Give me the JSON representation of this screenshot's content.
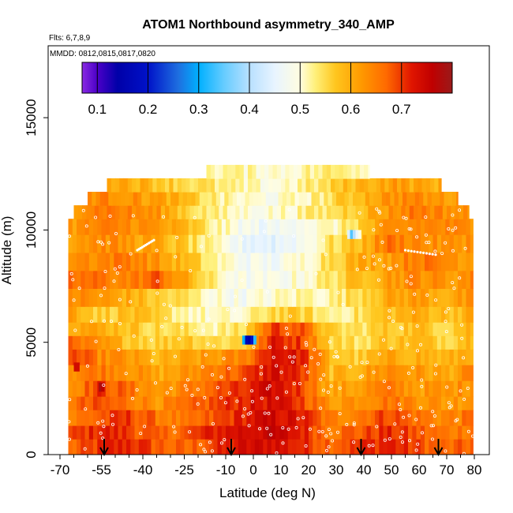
{
  "chart_data": {
    "type": "heatmap",
    "title": "ATOM1 Northbound asymmetry_340_AMP",
    "subtitle_flights": "Flts: 6,7,8,9",
    "subtitle_dates": "MMDD: 0812,0815,0817,0820",
    "xlabel": "Latitude (deg N)",
    "ylabel": "Altitude (m)",
    "xlim": [
      -70,
      80
    ],
    "ylim": [
      0,
      17500
    ],
    "x_ticks": [
      -70,
      -55,
      -40,
      -25,
      -10,
      0,
      10,
      20,
      30,
      40,
      50,
      60,
      70,
      80
    ],
    "x_tick_labels": [
      "-70",
      "-55",
      "-40",
      "-25",
      "-10",
      "0",
      "10",
      "20",
      "30",
      "40",
      "50",
      "60",
      "70",
      "80"
    ],
    "x_minor_ticks": [
      -65,
      -60,
      -50,
      -45,
      -35,
      -30,
      -20,
      -15,
      -5,
      5,
      15,
      25,
      35,
      45,
      55,
      65,
      75
    ],
    "y_ticks": [
      0,
      5000,
      10000,
      15000
    ],
    "y_tick_labels": [
      "0",
      "5000",
      "10000",
      "15000"
    ],
    "colorbar": {
      "range": [
        0.07,
        0.8
      ],
      "tick_values": [
        0.1,
        0.2,
        0.3,
        0.4,
        0.5,
        0.6,
        0.7
      ],
      "tick_labels": [
        "0.1",
        "0.2",
        "0.3",
        "0.4",
        "0.5",
        "0.6",
        "0.7"
      ],
      "stops": [
        {
          "v": 0.07,
          "color": "#8a2be2"
        },
        {
          "v": 0.1,
          "color": "#4b00c8"
        },
        {
          "v": 0.14,
          "color": "#0000a8"
        },
        {
          "v": 0.2,
          "color": "#0012c8"
        },
        {
          "v": 0.26,
          "color": "#1e6fe0"
        },
        {
          "v": 0.3,
          "color": "#00b0ff"
        },
        {
          "v": 0.35,
          "color": "#66ccff"
        },
        {
          "v": 0.4,
          "color": "#b8e0ff"
        },
        {
          "v": 0.45,
          "color": "#e8f4ff"
        },
        {
          "v": 0.5,
          "color": "#fffde0"
        },
        {
          "v": 0.53,
          "color": "#fff07a"
        },
        {
          "v": 0.57,
          "color": "#ffc61e"
        },
        {
          "v": 0.62,
          "color": "#ff9a00"
        },
        {
          "v": 0.67,
          "color": "#ff6a00"
        },
        {
          "v": 0.72,
          "color": "#e01500"
        },
        {
          "v": 0.76,
          "color": "#c00000"
        },
        {
          "v": 0.8,
          "color": "#9a1a1a"
        }
      ]
    },
    "profile_arrows_lat": [
      -54,
      -8,
      39,
      67
    ],
    "profile_bands": [
      {
        "y0": 0,
        "y1": 700,
        "x0": -67,
        "x1": 79.5,
        "values": [
          0.66,
          0.7,
          0.72,
          0.68,
          0.66,
          0.7,
          0.73,
          0.74,
          0.71,
          0.68,
          0.7,
          0.72,
          0.69,
          0.66,
          0.68
        ]
      },
      {
        "y0": 700,
        "y1": 1300,
        "x0": -67,
        "x1": 79.5,
        "values": [
          0.68,
          0.72,
          0.7,
          0.66,
          0.68,
          0.72,
          0.74,
          0.75,
          0.72,
          0.66,
          0.68,
          0.71,
          0.68,
          0.65,
          0.67
        ]
      },
      {
        "y0": 1300,
        "y1": 2000,
        "x0": -67,
        "x1": 79.5,
        "values": [
          0.64,
          0.68,
          0.7,
          0.66,
          0.64,
          0.68,
          0.72,
          0.74,
          0.72,
          0.64,
          0.66,
          0.7,
          0.66,
          0.64,
          0.66
        ]
      },
      {
        "y0": 2000,
        "y1": 2600,
        "x0": -67,
        "x1": 79.5,
        "values": [
          0.66,
          0.68,
          0.66,
          0.63,
          0.65,
          0.69,
          0.72,
          0.73,
          0.7,
          0.62,
          0.64,
          0.66,
          0.64,
          0.62,
          0.64
        ]
      },
      {
        "y0": 2600,
        "y1": 3300,
        "x0": -67,
        "x1": 79.5,
        "values": [
          0.63,
          0.7,
          0.66,
          0.62,
          0.64,
          0.68,
          0.7,
          0.74,
          0.7,
          0.6,
          0.62,
          0.65,
          0.62,
          0.62,
          0.64
        ]
      },
      {
        "y0": 3300,
        "y1": 4000,
        "x0": -67,
        "x1": 79.5,
        "values": [
          0.64,
          0.66,
          0.64,
          0.6,
          0.62,
          0.66,
          0.68,
          0.74,
          0.7,
          0.58,
          0.6,
          0.64,
          0.62,
          0.6,
          0.64
        ]
      },
      {
        "y0": 4000,
        "y1": 4700,
        "x0": -67,
        "x1": 79.5,
        "values": [
          0.7,
          0.64,
          0.62,
          0.58,
          0.6,
          0.62,
          0.64,
          0.74,
          0.72,
          0.58,
          0.56,
          0.6,
          0.6,
          0.58,
          0.62
        ]
      },
      {
        "y0": 4700,
        "y1": 5300,
        "x0": -67,
        "x1": 79.5,
        "values": [
          0.66,
          0.62,
          0.58,
          0.56,
          0.58,
          0.55,
          0.56,
          0.72,
          0.7,
          0.56,
          0.54,
          0.58,
          0.58,
          0.56,
          0.6
        ]
      },
      {
        "y0": 5300,
        "y1": 5900,
        "x0": -67,
        "x1": 79.5,
        "values": [
          0.62,
          0.6,
          0.58,
          0.55,
          0.54,
          0.52,
          0.54,
          0.7,
          0.68,
          0.55,
          0.54,
          0.57,
          0.58,
          0.56,
          0.6
        ]
      },
      {
        "y0": 5900,
        "y1": 6600,
        "x0": -67,
        "x1": 79.5,
        "values": [
          0.62,
          0.56,
          0.58,
          0.55,
          0.52,
          0.5,
          0.5,
          0.56,
          0.56,
          0.52,
          0.54,
          0.58,
          0.6,
          0.58,
          0.6
        ]
      },
      {
        "y0": 6600,
        "y1": 7400,
        "x0": -67,
        "x1": 79.5,
        "values": [
          0.64,
          0.62,
          0.6,
          0.56,
          0.54,
          0.5,
          0.48,
          0.5,
          0.52,
          0.52,
          0.56,
          0.6,
          0.62,
          0.6,
          0.62
        ]
      },
      {
        "y0": 7400,
        "y1": 8200,
        "x0": -67,
        "x1": 79.5,
        "values": [
          0.66,
          0.66,
          0.64,
          0.68,
          0.6,
          0.52,
          0.48,
          0.48,
          0.5,
          0.54,
          0.58,
          0.62,
          0.64,
          0.62,
          0.64
        ]
      },
      {
        "y0": 8200,
        "y1": 9000,
        "x0": -67,
        "x1": 79.5,
        "values": [
          0.64,
          0.64,
          0.66,
          0.62,
          0.58,
          0.52,
          0.48,
          0.47,
          0.5,
          0.56,
          0.6,
          0.62,
          0.66,
          0.64,
          0.62
        ]
      },
      {
        "y0": 9000,
        "y1": 9800,
        "x0": -67,
        "x1": 79.5,
        "values": [
          0.62,
          0.64,
          0.62,
          0.6,
          0.56,
          0.5,
          0.46,
          0.45,
          0.48,
          0.54,
          0.58,
          0.66,
          0.64,
          0.62,
          0.64
        ]
      },
      {
        "y0": 9800,
        "y1": 10500,
        "x0": -67,
        "x1": 79.5,
        "values": [
          0.62,
          0.64,
          0.64,
          0.62,
          0.58,
          0.52,
          0.48,
          0.46,
          0.5,
          0.5,
          0.56,
          0.62,
          0.64,
          0.64,
          0.62
        ]
      },
      {
        "y0": 10500,
        "y1": 11100,
        "x0": -65,
        "x1": 78,
        "values": [
          0.64,
          0.66,
          0.64,
          0.62,
          0.56,
          0.52,
          0.5,
          0.5,
          0.52,
          0.54,
          0.58,
          0.62,
          0.66,
          0.64,
          0.62
        ]
      },
      {
        "y0": 11100,
        "y1": 11700,
        "x0": -60,
        "x1": 74,
        "values": [
          0.64,
          0.64,
          0.62,
          0.6,
          0.56,
          0.52,
          0.5,
          0.49,
          0.51,
          0.54,
          0.58,
          0.62,
          0.64,
          0.62,
          0.62
        ]
      },
      {
        "y0": 11700,
        "y1": 12300,
        "x0": -53,
        "x1": 68,
        "values": [
          0.62,
          0.6,
          0.58,
          0.56,
          0.54,
          0.52,
          0.5,
          0.5,
          0.52,
          0.54,
          0.58,
          0.6,
          0.62,
          0.6,
          0.6
        ]
      },
      {
        "y0": 12300,
        "y1": 12900,
        "x0": -17,
        "x1": 42,
        "values": [
          0.53,
          0.52,
          0.52,
          0.51,
          0.51,
          0.51,
          0.5,
          0.51,
          0.52,
          0.52,
          0.53,
          0.53,
          0.54,
          0.52,
          0.52
        ]
      }
    ],
    "anomalies": [
      {
        "x0": -4,
        "x1": 1,
        "y0": 4900,
        "y1": 5300,
        "values": [
          0.3,
          0.16,
          0.14,
          0.2,
          0.32
        ]
      },
      {
        "x0": 34,
        "x1": 39,
        "y0": 9600,
        "y1": 10000,
        "values": [
          0.44,
          0.34,
          0.4,
          0.46,
          0.5
        ]
      },
      {
        "x0": -65,
        "x1": -63,
        "y0": 3700,
        "y1": 4100,
        "values": [
          0.74,
          0.74
        ]
      },
      {
        "x0": -56,
        "x1": -54,
        "y0": 2800,
        "y1": 3200,
        "values": [
          0.78,
          0.76
        ]
      }
    ]
  }
}
